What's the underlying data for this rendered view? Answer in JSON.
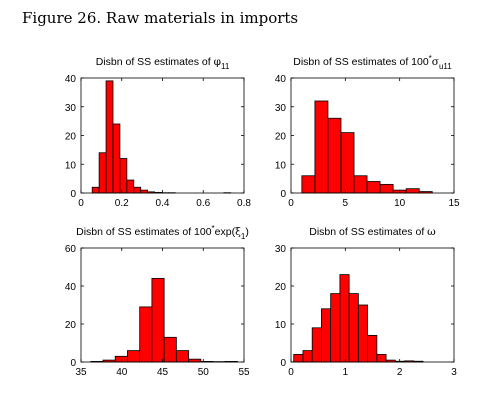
{
  "figure_title": "Figure 26. Raw materials in imports",
  "chart_data": [
    {
      "type": "bar",
      "title_parts": [
        {
          "text": "Disbn of SS estimates of "
        },
        {
          "text": "φ",
          "sym": true
        },
        {
          "text": "11",
          "sub": true
        }
      ],
      "xlim": [
        0,
        0.8
      ],
      "ylim": [
        0,
        40
      ],
      "xticks": [
        "0",
        "0.2",
        "0.4",
        "0.6",
        "0.8"
      ],
      "yticks": [
        "0",
        "10",
        "20",
        "30",
        "40"
      ],
      "xtick_values": [
        0,
        0.2,
        0.4,
        0.6,
        0.8
      ],
      "ytick_values": [
        0,
        10,
        20,
        30,
        40
      ],
      "bin_edges": [
        0.055,
        0.089,
        0.123,
        0.157,
        0.191,
        0.225,
        0.259,
        0.293,
        0.327,
        0.361,
        0.395,
        0.429,
        0.463,
        0.497,
        0.531,
        0.565,
        0.599,
        0.633,
        0.667,
        0.701,
        0.735
      ],
      "values": [
        2,
        14,
        39,
        24,
        12,
        4.5,
        2,
        1,
        0.4,
        0.2,
        0.1,
        0.1,
        0,
        0,
        0,
        0,
        0,
        0,
        0,
        0.1
      ],
      "bar_color": "#ff0000"
    },
    {
      "type": "bar",
      "title_parts": [
        {
          "text": "Disbn of SS estimates of 100"
        },
        {
          "text": "*",
          "sup": true
        },
        {
          "text": "σ",
          "sym": true
        },
        {
          "text": "u11",
          "sub": true
        }
      ],
      "xlim": [
        0,
        15
      ],
      "ylim": [
        0,
        40
      ],
      "xticks": [
        "0",
        "5",
        "10",
        "15"
      ],
      "yticks": [
        "0",
        "10",
        "20",
        "30",
        "40"
      ],
      "xtick_values": [
        0,
        5,
        10,
        15
      ],
      "ytick_values": [
        0,
        10,
        20,
        30,
        40
      ],
      "bin_edges": [
        1.0,
        2.2,
        3.4,
        4.6,
        5.8,
        7.0,
        8.2,
        9.4,
        10.6,
        11.8,
        13.0
      ],
      "values": [
        6,
        32,
        26,
        21,
        6,
        4,
        3,
        1,
        1.5,
        0.5
      ],
      "bar_color": "#ff0000"
    },
    {
      "type": "bar",
      "title_parts": [
        {
          "text": "Disbn of SS estimates of 100"
        },
        {
          "text": "*",
          "sup": true
        },
        {
          "text": "exp("
        },
        {
          "text": "ξ",
          "sym": true
        },
        {
          "text": "1",
          "sub": true
        },
        {
          "text": ")"
        }
      ],
      "xlim": [
        35,
        55
      ],
      "ylim": [
        0,
        60
      ],
      "xticks": [
        "35",
        "40",
        "45",
        "50",
        "55"
      ],
      "yticks": [
        "0",
        "20",
        "40",
        "60"
      ],
      "xtick_values": [
        35,
        40,
        45,
        50,
        55
      ],
      "ytick_values": [
        0,
        20,
        40,
        60
      ],
      "bin_edges": [
        36.2,
        37.7,
        39.2,
        40.7,
        42.2,
        43.7,
        45.2,
        46.7,
        48.2,
        49.7,
        51.2,
        52.7,
        54.2
      ],
      "values": [
        0.3,
        1,
        3,
        6,
        29,
        44,
        13,
        6,
        1.5,
        0.3,
        0.2,
        0.3
      ],
      "bar_color": "#ff0000"
    },
    {
      "type": "bar",
      "title_parts": [
        {
          "text": "Disbn of SS estimates of "
        },
        {
          "text": "ω",
          "sym": true
        }
      ],
      "xlim": [
        0,
        3
      ],
      "ylim": [
        0,
        30
      ],
      "xticks": [
        "0",
        "1",
        "2",
        "3"
      ],
      "yticks": [
        "0",
        "10",
        "20",
        "30"
      ],
      "xtick_values": [
        0,
        1,
        2,
        3
      ],
      "ytick_values": [
        0,
        10,
        20,
        30
      ],
      "bin_edges": [
        0.05,
        0.22,
        0.39,
        0.56,
        0.73,
        0.9,
        1.07,
        1.24,
        1.41,
        1.58,
        1.75,
        1.92,
        2.09,
        2.26,
        2.43
      ],
      "values": [
        2,
        3,
        9,
        14,
        18,
        23,
        18,
        15,
        7,
        2,
        0.5,
        0.2,
        0.3,
        0.2
      ],
      "bar_color": "#ff0000"
    }
  ]
}
